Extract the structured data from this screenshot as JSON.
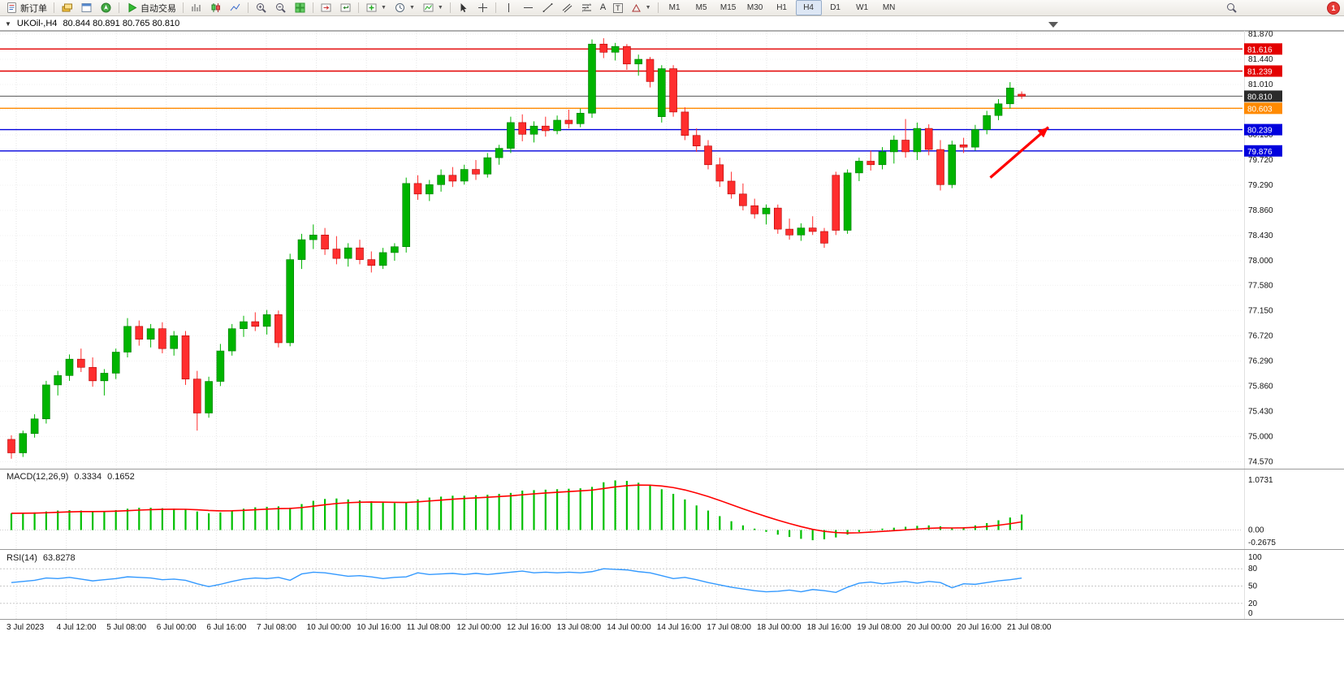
{
  "toolbar": {
    "new_order_label": "新订单",
    "autotrade_label": "自动交易",
    "text_tool_label": "A",
    "label_tool_label": "T",
    "timeframes": [
      "M1",
      "M5",
      "M15",
      "M30",
      "H1",
      "H4",
      "D1",
      "W1",
      "MN"
    ],
    "active_timeframe": "H4",
    "notification_count": "1"
  },
  "chart": {
    "title_symbol": "UKOil-,H4",
    "title_ohlc": "80.844 80.891 80.765 80.810"
  },
  "chart_data": {
    "type": "candlestick",
    "symbol": "UKOil-",
    "timeframe": "H4",
    "current": {
      "open": "80.844",
      "high": "80.891",
      "low": "80.765",
      "close": "80.810"
    },
    "price_axis": [
      81.87,
      81.44,
      81.01,
      80.58,
      80.15,
      79.72,
      79.29,
      78.86,
      78.43,
      78.0,
      77.58,
      77.15,
      76.72,
      76.29,
      75.86,
      75.43,
      75.0,
      74.57
    ],
    "price_markers": [
      {
        "value": "81.616",
        "color": "#e30000",
        "type": "resistance-line"
      },
      {
        "value": "81.239",
        "color": "#e30000",
        "type": "resistance-line"
      },
      {
        "value": "80.810",
        "color": "#2b2b2b",
        "type": "current-price"
      },
      {
        "value": "80.603",
        "color": "#ff8a00",
        "type": "level-line"
      },
      {
        "value": "80.239",
        "color": "#0000dd",
        "type": "support-line"
      },
      {
        "value": "79.876",
        "color": "#0000dd",
        "type": "support-line"
      }
    ],
    "dates": [
      "3 Jul 2023",
      "4 Jul 12:00",
      "5 Jul 08:00",
      "6 Jul 00:00",
      "6 Jul 16:00",
      "7 Jul 08:00",
      "10 Jul 00:00",
      "10 Jul 16:00",
      "11 Jul 08:00",
      "12 Jul 00:00",
      "12 Jul 16:00",
      "13 Jul 08:00",
      "14 Jul 00:00",
      "14 Jul 16:00",
      "17 Jul 08:00",
      "18 Jul 00:00",
      "18 Jul 16:00",
      "19 Jul 08:00",
      "20 Jul 00:00",
      "20 Jul 16:00",
      "21 Jul 08:00"
    ],
    "colors": {
      "up": "#00b400",
      "down": "#ff2e2e",
      "up_border": "#007a00",
      "down_border": "#b30000",
      "grid": "#e6e6e6",
      "macd_hist": "#00c000",
      "macd_signal": "#ff0000",
      "rsi": "#3399ff"
    },
    "candles": [
      [
        74.95,
        75.02,
        74.62,
        74.72
      ],
      [
        74.72,
        75.1,
        74.65,
        75.05
      ],
      [
        75.05,
        75.38,
        74.98,
        75.3
      ],
      [
        75.3,
        75.95,
        75.22,
        75.88
      ],
      [
        75.88,
        76.12,
        75.7,
        76.04
      ],
      [
        76.04,
        76.4,
        75.95,
        76.32
      ],
      [
        76.32,
        76.5,
        76.1,
        76.18
      ],
      [
        76.18,
        76.35,
        75.85,
        75.95
      ],
      [
        75.95,
        76.15,
        75.7,
        76.08
      ],
      [
        76.08,
        76.5,
        75.98,
        76.44
      ],
      [
        76.44,
        77.02,
        76.35,
        76.88
      ],
      [
        76.88,
        76.98,
        76.55,
        76.66
      ],
      [
        76.66,
        76.92,
        76.52,
        76.84
      ],
      [
        76.84,
        76.95,
        76.42,
        76.5
      ],
      [
        76.5,
        76.8,
        76.38,
        76.72
      ],
      [
        76.72,
        76.8,
        75.88,
        75.98
      ],
      [
        75.98,
        76.12,
        75.1,
        75.4
      ],
      [
        75.4,
        76.02,
        75.32,
        75.94
      ],
      [
        75.94,
        76.58,
        75.86,
        76.46
      ],
      [
        76.46,
        76.92,
        76.38,
        76.84
      ],
      [
        76.84,
        77.06,
        76.7,
        76.96
      ],
      [
        76.96,
        77.12,
        76.8,
        76.88
      ],
      [
        76.88,
        77.16,
        76.74,
        77.08
      ],
      [
        77.08,
        77.15,
        76.52,
        76.6
      ],
      [
        76.6,
        78.12,
        76.54,
        78.02
      ],
      [
        78.02,
        78.46,
        77.86,
        78.36
      ],
      [
        78.36,
        78.62,
        78.2,
        78.44
      ],
      [
        78.44,
        78.56,
        78.1,
        78.2
      ],
      [
        78.2,
        78.42,
        77.94,
        78.04
      ],
      [
        78.04,
        78.3,
        77.9,
        78.22
      ],
      [
        78.22,
        78.36,
        77.94,
        78.02
      ],
      [
        78.02,
        78.16,
        77.8,
        77.92
      ],
      [
        77.92,
        78.22,
        77.86,
        78.14
      ],
      [
        78.14,
        78.3,
        78.0,
        78.24
      ],
      [
        78.24,
        79.42,
        78.14,
        79.32
      ],
      [
        79.32,
        79.46,
        79.04,
        79.14
      ],
      [
        79.14,
        79.38,
        79.02,
        79.3
      ],
      [
        79.3,
        79.56,
        79.18,
        79.46
      ],
      [
        79.46,
        79.6,
        79.26,
        79.36
      ],
      [
        79.36,
        79.64,
        79.3,
        79.56
      ],
      [
        79.56,
        79.72,
        79.38,
        79.48
      ],
      [
        79.48,
        79.84,
        79.42,
        79.76
      ],
      [
        79.76,
        79.98,
        79.64,
        79.92
      ],
      [
        79.92,
        80.46,
        79.84,
        80.36
      ],
      [
        80.36,
        80.5,
        80.04,
        80.16
      ],
      [
        80.16,
        80.38,
        80.02,
        80.3
      ],
      [
        80.3,
        80.46,
        80.12,
        80.22
      ],
      [
        80.22,
        80.48,
        80.16,
        80.4
      ],
      [
        80.4,
        80.58,
        80.26,
        80.34
      ],
      [
        80.34,
        80.6,
        80.28,
        80.52
      ],
      [
        80.52,
        81.78,
        80.44,
        81.7
      ],
      [
        81.7,
        81.8,
        81.46,
        81.56
      ],
      [
        81.56,
        81.72,
        81.42,
        81.66
      ],
      [
        81.66,
        81.7,
        81.26,
        81.36
      ],
      [
        81.36,
        81.52,
        81.16,
        81.44
      ],
      [
        81.44,
        81.48,
        80.96,
        81.06
      ],
      [
        80.46,
        81.34,
        80.36,
        81.28
      ],
      [
        81.28,
        81.34,
        80.46,
        80.54
      ],
      [
        80.54,
        80.62,
        80.06,
        80.14
      ],
      [
        80.14,
        80.26,
        79.86,
        79.96
      ],
      [
        79.96,
        80.06,
        79.56,
        79.64
      ],
      [
        79.64,
        79.76,
        79.26,
        79.36
      ],
      [
        79.36,
        79.52,
        79.06,
        79.14
      ],
      [
        79.14,
        79.32,
        78.86,
        78.94
      ],
      [
        78.94,
        79.06,
        78.72,
        78.8
      ],
      [
        78.8,
        78.96,
        78.62,
        78.9
      ],
      [
        78.9,
        78.96,
        78.46,
        78.54
      ],
      [
        78.54,
        78.72,
        78.36,
        78.44
      ],
      [
        78.44,
        78.64,
        78.34,
        78.56
      ],
      [
        78.56,
        78.76,
        78.44,
        78.5
      ],
      [
        78.5,
        78.56,
        78.22,
        78.3
      ],
      [
        79.46,
        79.52,
        78.44,
        78.52
      ],
      [
        78.52,
        79.56,
        78.46,
        79.5
      ],
      [
        79.5,
        79.76,
        79.36,
        79.7
      ],
      [
        79.7,
        79.88,
        79.54,
        79.64
      ],
      [
        79.64,
        79.94,
        79.56,
        79.86
      ],
      [
        79.86,
        80.14,
        79.66,
        80.06
      ],
      [
        80.06,
        80.42,
        79.76,
        79.86
      ],
      [
        79.86,
        80.36,
        79.72,
        80.26
      ],
      [
        80.26,
        80.33,
        79.8,
        79.9
      ],
      [
        79.9,
        80.06,
        79.2,
        79.3
      ],
      [
        79.3,
        80.05,
        79.24,
        79.98
      ],
      [
        79.98,
        80.1,
        79.84,
        79.94
      ],
      [
        79.94,
        80.32,
        79.88,
        80.24
      ],
      [
        80.24,
        80.56,
        80.16,
        80.48
      ],
      [
        80.48,
        80.76,
        80.4,
        80.68
      ],
      [
        80.68,
        81.05,
        80.6,
        80.95
      ],
      [
        80.844,
        80.891,
        80.765,
        80.81
      ]
    ],
    "macd": {
      "name": "MACD(12,26,9)",
      "value_main": "0.3334",
      "value_signal": "0.1652",
      "axis": [
        "1.0731",
        "0.00",
        "-0.2675"
      ],
      "histogram": [
        0.36,
        0.37,
        0.38,
        0.4,
        0.42,
        0.43,
        0.42,
        0.4,
        0.41,
        0.43,
        0.46,
        0.48,
        0.48,
        0.47,
        0.46,
        0.44,
        0.4,
        0.36,
        0.38,
        0.42,
        0.46,
        0.49,
        0.5,
        0.51,
        0.48,
        0.56,
        0.63,
        0.67,
        0.68,
        0.66,
        0.64,
        0.62,
        0.59,
        0.58,
        0.59,
        0.66,
        0.7,
        0.72,
        0.74,
        0.74,
        0.75,
        0.76,
        0.78,
        0.8,
        0.85,
        0.86,
        0.87,
        0.88,
        0.89,
        0.9,
        0.93,
        1.03,
        1.07,
        1.06,
        1.02,
        0.96,
        0.88,
        0.78,
        0.66,
        0.53,
        0.42,
        0.3,
        0.19,
        0.1,
        0.03,
        -0.04,
        -0.1,
        -0.15,
        -0.19,
        -0.22,
        -0.2,
        -0.16,
        -0.1,
        -0.04,
        0.01,
        0.03,
        0.05,
        0.07,
        0.09,
        0.1,
        0.08,
        0.04,
        0.06,
        0.1,
        0.15,
        0.21,
        0.27,
        0.3334
      ]
    },
    "rsi": {
      "name": "RSI(14)",
      "value": "63.8278",
      "axis": [
        "100",
        "80",
        "50",
        "20",
        "0"
      ],
      "levels": [
        80,
        50,
        20
      ],
      "values": [
        56,
        58,
        60,
        64,
        63,
        65,
        62,
        59,
        61,
        63,
        66,
        65,
        64,
        61,
        62,
        60,
        54,
        49,
        53,
        58,
        62,
        64,
        63,
        65,
        60,
        71,
        74,
        73,
        70,
        67,
        68,
        66,
        63,
        65,
        66,
        73,
        70,
        71,
        72,
        70,
        72,
        70,
        72,
        74,
        76,
        73,
        74,
        73,
        74,
        73,
        75,
        80,
        79,
        78,
        75,
        73,
        68,
        63,
        65,
        61,
        56,
        52,
        48,
        45,
        42,
        40,
        41,
        43,
        40,
        44,
        42,
        39,
        48,
        55,
        57,
        54,
        56,
        58,
        55,
        58,
        56,
        47,
        54,
        53,
        56,
        59,
        61,
        63.8278
      ]
    },
    "annotation_arrow": {
      "from_index": 84.3,
      "from_price": 79.42,
      "to_index": 89.3,
      "to_price": 80.28,
      "color": "#ff0000"
    }
  }
}
